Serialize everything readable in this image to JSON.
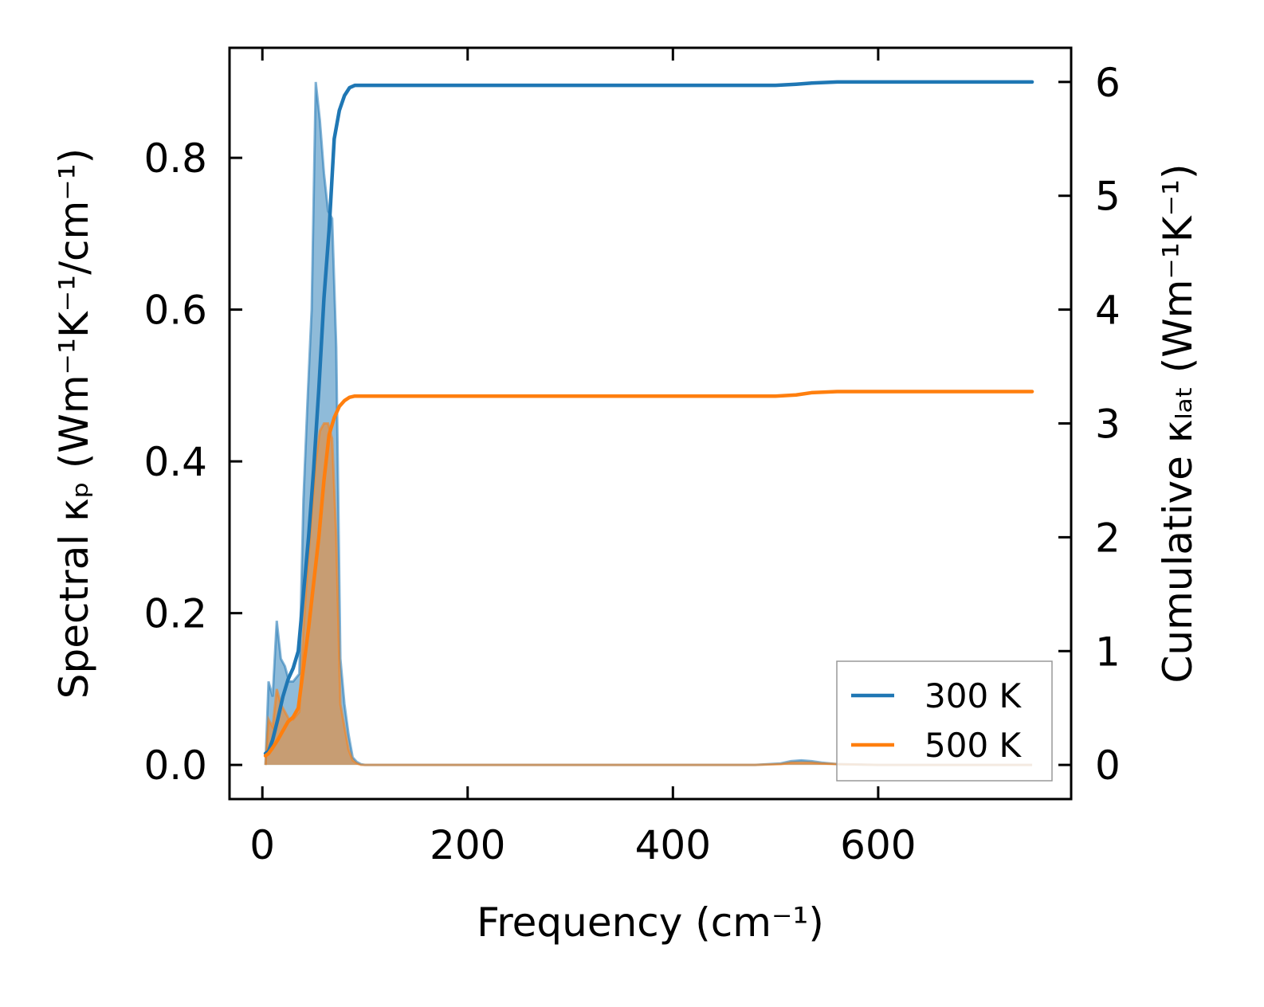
{
  "chart_data": {
    "type": "area",
    "xlabel": "Frequency (cm⁻¹)",
    "ylabel_left": "Spectral κₚ (Wm⁻¹K⁻¹/cm⁻¹)",
    "ylabel_right": "Cumulative κₗₐₜ (Wm⁻¹K⁻¹)",
    "xlim": [
      -32,
      788
    ],
    "ylim_left": [
      -0.045,
      0.945
    ],
    "ylim_right": [
      -0.3,
      6.3
    ],
    "xticks": [
      0,
      200,
      400,
      600
    ],
    "yticks_left": [
      0.0,
      0.2,
      0.4,
      0.6,
      0.8
    ],
    "ytick_labels_left": [
      "0.0",
      "0.2",
      "0.4",
      "0.6",
      "0.8"
    ],
    "yticks_right": [
      0,
      1,
      2,
      3,
      4,
      5,
      6
    ],
    "legend": {
      "position": "lower-right"
    },
    "series": [
      {
        "name": "300 K",
        "color": "#1f77b4",
        "spectral": {
          "x": [
            3,
            6,
            10,
            14,
            18,
            22,
            26,
            30,
            36,
            40,
            44,
            48,
            52,
            56,
            60,
            64,
            68,
            72,
            76,
            80,
            84,
            88,
            92,
            96,
            100,
            120,
            300,
            480,
            505,
            515,
            525,
            535,
            545,
            560,
            600,
            750
          ],
          "y": [
            0.0,
            0.11,
            0.09,
            0.19,
            0.14,
            0.13,
            0.11,
            0.11,
            0.12,
            0.35,
            0.48,
            0.6,
            0.9,
            0.85,
            0.78,
            0.73,
            0.72,
            0.55,
            0.14,
            0.08,
            0.04,
            0.01,
            0.004,
            0.001,
            0.0,
            0.0,
            0.0,
            0.0,
            0.002,
            0.005,
            0.006,
            0.005,
            0.003,
            0.001,
            0.0,
            0.0
          ]
        },
        "cumulative": {
          "x": [
            3,
            6,
            10,
            15,
            20,
            25,
            30,
            35,
            40,
            45,
            50,
            55,
            60,
            65,
            70,
            75,
            80,
            85,
            90,
            100,
            200,
            400,
            500,
            520,
            535,
            560,
            600,
            750
          ],
          "y": [
            0.1,
            0.12,
            0.22,
            0.4,
            0.6,
            0.75,
            0.85,
            1.0,
            1.5,
            2.0,
            2.6,
            3.3,
            4.1,
            4.7,
            5.5,
            5.75,
            5.88,
            5.95,
            5.97,
            5.97,
            5.97,
            5.97,
            5.97,
            5.98,
            5.99,
            6.0,
            6.0,
            6.0
          ]
        }
      },
      {
        "name": "500 K",
        "color": "#ff7f0e",
        "spectral": {
          "x": [
            3,
            6,
            10,
            14,
            18,
            22,
            26,
            30,
            36,
            40,
            44,
            48,
            52,
            56,
            60,
            64,
            68,
            72,
            76,
            80,
            84,
            88,
            92,
            96,
            100,
            120,
            300,
            480,
            505,
            515,
            525,
            535,
            545,
            560,
            600,
            750
          ],
          "y": [
            0.0,
            0.06,
            0.05,
            0.1,
            0.08,
            0.07,
            0.06,
            0.06,
            0.07,
            0.18,
            0.26,
            0.33,
            0.4,
            0.44,
            0.45,
            0.45,
            0.43,
            0.3,
            0.08,
            0.05,
            0.02,
            0.006,
            0.002,
            0.0,
            0.0,
            0.0,
            0.0,
            0.0,
            0.001,
            0.003,
            0.003,
            0.003,
            0.002,
            0.001,
            0.0,
            0.0
          ]
        },
        "cumulative": {
          "x": [
            3,
            6,
            10,
            15,
            20,
            25,
            30,
            35,
            40,
            45,
            50,
            55,
            60,
            65,
            70,
            75,
            80,
            85,
            90,
            100,
            200,
            400,
            500,
            520,
            535,
            560,
            600,
            750
          ],
          "y": [
            0.08,
            0.1,
            0.15,
            0.22,
            0.3,
            0.38,
            0.42,
            0.5,
            0.85,
            1.2,
            1.6,
            2.0,
            2.5,
            2.9,
            3.05,
            3.15,
            3.2,
            3.23,
            3.24,
            3.24,
            3.24,
            3.24,
            3.24,
            3.25,
            3.27,
            3.28,
            3.28,
            3.28
          ]
        }
      }
    ]
  }
}
